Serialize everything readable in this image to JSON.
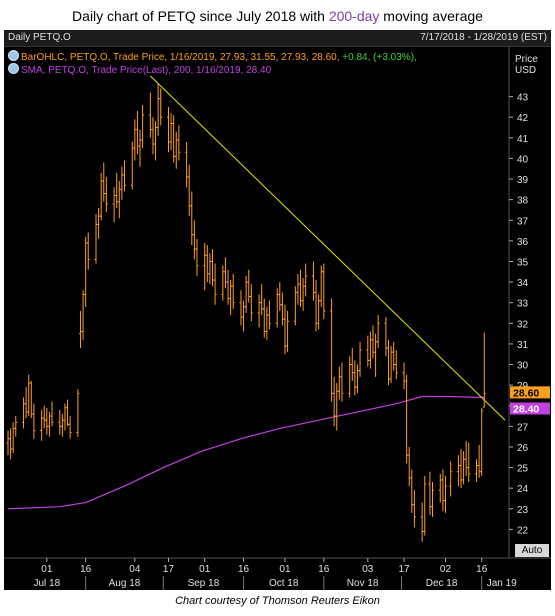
{
  "title": {
    "before": "Daily chart of PETQ since July 2018 with ",
    "accent": "200-day",
    "after": " moving average"
  },
  "header": {
    "left": "Daily PETQ.O",
    "right": "7/17/2018 - 1/28/2019 (EST)"
  },
  "legend": {
    "ohlc": {
      "text": "BarOHLC, PETQ.O, Trade Price,  1/16/2019, 27.93, 31.55, 27.93, 28.60,",
      "change": " +0.84, (+3.03%),"
    },
    "sma": {
      "text": "SMA, PETQ.O, Trade Price(Last),  200,  1/16/2019, 28.40"
    }
  },
  "axis": {
    "currency_line1": "Price",
    "currency_line2": "USD",
    "auto_label": "Auto"
  },
  "credit": "Chart courtesy of Thomson Reuters Eikon",
  "colors": {
    "bars": "#ff9f1c",
    "sma": "#c040e0",
    "trendline": "#e6e600",
    "last_price_bg": "#ff9f1c",
    "sma_price_bg": "#c040e0"
  },
  "chart_data": {
    "type": "line",
    "subtype": "ohlc-bars",
    "ylim": [
      21,
      44
    ],
    "y_ticks": [
      22,
      23,
      24,
      25,
      26,
      27,
      28,
      29,
      30,
      31,
      32,
      33,
      34,
      35,
      36,
      37,
      38,
      39,
      40,
      41,
      42,
      43
    ],
    "x_day_ticks": [
      {
        "label": "01",
        "day": 15
      },
      {
        "label": "16",
        "day": 30
      },
      {
        "label": "04",
        "day": 49
      },
      {
        "label": "17",
        "day": 62
      },
      {
        "label": "01",
        "day": 76
      },
      {
        "label": "16",
        "day": 91
      },
      {
        "label": "01",
        "day": 107
      },
      {
        "label": "16",
        "day": 122
      },
      {
        "label": "03",
        "day": 139
      },
      {
        "label": "17",
        "day": 153
      },
      {
        "label": "02",
        "day": 169
      },
      {
        "label": "16",
        "day": 183
      }
    ],
    "x_month_labels": [
      {
        "label": "Jul 18",
        "day": 0
      },
      {
        "label": "Aug 18",
        "day": 30
      },
      {
        "label": "Sep 18",
        "day": 60
      },
      {
        "label": "Oct 18",
        "day": 91
      },
      {
        "label": "Nov 18",
        "day": 122
      },
      {
        "label": "Dec 18",
        "day": 152
      },
      {
        "label": "Jan 19",
        "day": 183
      }
    ],
    "x_range_days": [
      0,
      192
    ],
    "ohlc": [
      {
        "day": 0,
        "o": 26.2,
        "h": 26.8,
        "l": 25.6,
        "c": 26.4
      },
      {
        "day": 1,
        "o": 26.4,
        "h": 26.9,
        "l": 25.4,
        "c": 25.9
      },
      {
        "day": 2,
        "o": 25.9,
        "h": 27.2,
        "l": 25.7,
        "c": 26.9
      },
      {
        "day": 3,
        "o": 26.9,
        "h": 27.5,
        "l": 26.5,
        "c": 27.2
      },
      {
        "day": 6,
        "o": 27.2,
        "h": 28.4,
        "l": 26.9,
        "c": 28.1
      },
      {
        "day": 7,
        "o": 28.1,
        "h": 28.9,
        "l": 27.4,
        "c": 27.7
      },
      {
        "day": 8,
        "o": 27.7,
        "h": 29.5,
        "l": 27.5,
        "c": 29.1
      },
      {
        "day": 9,
        "o": 29.1,
        "h": 29.2,
        "l": 27.4,
        "c": 27.6
      },
      {
        "day": 10,
        "o": 27.6,
        "h": 28.1,
        "l": 26.4,
        "c": 26.8
      },
      {
        "day": 13,
        "o": 26.8,
        "h": 27.8,
        "l": 26.3,
        "c": 27.4
      },
      {
        "day": 14,
        "o": 27.4,
        "h": 28.0,
        "l": 26.9,
        "c": 27.3
      },
      {
        "day": 15,
        "o": 27.3,
        "h": 27.9,
        "l": 26.6,
        "c": 27.0
      },
      {
        "day": 16,
        "o": 27.0,
        "h": 27.7,
        "l": 26.5,
        "c": 27.5
      },
      {
        "day": 17,
        "o": 27.5,
        "h": 28.2,
        "l": 27.0,
        "c": 27.2
      },
      {
        "day": 20,
        "o": 27.2,
        "h": 27.8,
        "l": 26.6,
        "c": 27.0
      },
      {
        "day": 21,
        "o": 27.0,
        "h": 27.6,
        "l": 26.5,
        "c": 27.3
      },
      {
        "day": 22,
        "o": 27.3,
        "h": 28.1,
        "l": 26.8,
        "c": 27.9
      },
      {
        "day": 23,
        "o": 27.9,
        "h": 28.3,
        "l": 27.0,
        "c": 27.1
      },
      {
        "day": 24,
        "o": 27.1,
        "h": 27.5,
        "l": 26.4,
        "c": 26.7
      },
      {
        "day": 27,
        "o": 26.7,
        "h": 28.8,
        "l": 26.5,
        "c": 28.6
      },
      {
        "day": 28,
        "o": 31.5,
        "h": 32.6,
        "l": 30.8,
        "c": 31.6
      },
      {
        "day": 29,
        "o": 31.6,
        "h": 33.6,
        "l": 31.2,
        "c": 33.4
      },
      {
        "day": 30,
        "o": 33.4,
        "h": 36.2,
        "l": 32.8,
        "c": 35.9
      },
      {
        "day": 31,
        "o": 35.9,
        "h": 36.4,
        "l": 34.6,
        "c": 35.1
      },
      {
        "day": 34,
        "o": 35.1,
        "h": 37.3,
        "l": 34.9,
        "c": 36.8
      },
      {
        "day": 35,
        "o": 36.8,
        "h": 37.6,
        "l": 36.1,
        "c": 37.2
      },
      {
        "day": 36,
        "o": 37.2,
        "h": 39.3,
        "l": 37.0,
        "c": 38.9
      },
      {
        "day": 37,
        "o": 38.9,
        "h": 39.8,
        "l": 37.9,
        "c": 38.3
      },
      {
        "day": 38,
        "o": 38.3,
        "h": 39.1,
        "l": 37.4,
        "c": 37.8
      },
      {
        "day": 41,
        "o": 37.8,
        "h": 38.6,
        "l": 36.9,
        "c": 38.2
      },
      {
        "day": 42,
        "o": 38.2,
        "h": 39.3,
        "l": 37.6,
        "c": 37.9
      },
      {
        "day": 43,
        "o": 37.9,
        "h": 38.9,
        "l": 37.1,
        "c": 38.5
      },
      {
        "day": 44,
        "o": 38.5,
        "h": 39.6,
        "l": 38.0,
        "c": 39.2
      },
      {
        "day": 45,
        "o": 39.2,
        "h": 39.9,
        "l": 38.4,
        "c": 38.7
      },
      {
        "day": 48,
        "o": 38.7,
        "h": 40.8,
        "l": 38.5,
        "c": 40.5
      },
      {
        "day": 49,
        "o": 40.5,
        "h": 41.9,
        "l": 39.9,
        "c": 41.4
      },
      {
        "day": 50,
        "o": 41.4,
        "h": 42.3,
        "l": 40.2,
        "c": 40.6
      },
      {
        "day": 51,
        "o": 40.6,
        "h": 41.4,
        "l": 39.6,
        "c": 40.9
      },
      {
        "day": 52,
        "o": 40.9,
        "h": 42.6,
        "l": 40.5,
        "c": 42.1
      },
      {
        "day": 55,
        "o": 42.1,
        "h": 43.2,
        "l": 41.0,
        "c": 41.4
      },
      {
        "day": 56,
        "o": 41.4,
        "h": 42.0,
        "l": 40.2,
        "c": 40.7
      },
      {
        "day": 57,
        "o": 40.7,
        "h": 41.8,
        "l": 39.9,
        "c": 41.5
      },
      {
        "day": 58,
        "o": 41.5,
        "h": 43.6,
        "l": 41.1,
        "c": 42.9
      },
      {
        "day": 59,
        "o": 42.9,
        "h": 43.4,
        "l": 41.6,
        "c": 42.0
      },
      {
        "day": 62,
        "o": 42.0,
        "h": 42.5,
        "l": 40.3,
        "c": 40.8
      },
      {
        "day": 63,
        "o": 40.8,
        "h": 42.2,
        "l": 40.4,
        "c": 41.7
      },
      {
        "day": 64,
        "o": 41.7,
        "h": 42.1,
        "l": 39.8,
        "c": 40.1
      },
      {
        "day": 65,
        "o": 40.1,
        "h": 41.3,
        "l": 39.5,
        "c": 40.9
      },
      {
        "day": 66,
        "o": 40.9,
        "h": 41.6,
        "l": 39.9,
        "c": 40.3
      },
      {
        "day": 69,
        "o": 40.3,
        "h": 40.8,
        "l": 38.6,
        "c": 39.1
      },
      {
        "day": 70,
        "o": 39.1,
        "h": 39.7,
        "l": 37.2,
        "c": 37.7
      },
      {
        "day": 71,
        "o": 37.7,
        "h": 38.4,
        "l": 35.8,
        "c": 36.3
      },
      {
        "day": 72,
        "o": 36.3,
        "h": 37.0,
        "l": 35.1,
        "c": 35.6
      },
      {
        "day": 73,
        "o": 35.6,
        "h": 36.1,
        "l": 34.3,
        "c": 34.8
      },
      {
        "day": 76,
        "o": 34.8,
        "h": 35.9,
        "l": 33.6,
        "c": 35.3
      },
      {
        "day": 77,
        "o": 35.3,
        "h": 35.8,
        "l": 34.0,
        "c": 34.4
      },
      {
        "day": 78,
        "o": 34.4,
        "h": 35.4,
        "l": 33.9,
        "c": 35.0
      },
      {
        "day": 79,
        "o": 35.0,
        "h": 35.6,
        "l": 33.8,
        "c": 34.1
      },
      {
        "day": 80,
        "o": 34.1,
        "h": 34.9,
        "l": 32.9,
        "c": 33.4
      },
      {
        "day": 83,
        "o": 33.4,
        "h": 34.8,
        "l": 33.1,
        "c": 34.5
      },
      {
        "day": 84,
        "o": 34.5,
        "h": 35.2,
        "l": 33.7,
        "c": 34.0
      },
      {
        "day": 85,
        "o": 34.0,
        "h": 34.6,
        "l": 32.9,
        "c": 33.2
      },
      {
        "day": 86,
        "o": 33.2,
        "h": 34.1,
        "l": 32.4,
        "c": 33.8
      },
      {
        "day": 87,
        "o": 33.8,
        "h": 34.4,
        "l": 32.7,
        "c": 33.0
      },
      {
        "day": 90,
        "o": 33.0,
        "h": 33.6,
        "l": 31.9,
        "c": 32.3
      },
      {
        "day": 91,
        "o": 32.3,
        "h": 33.1,
        "l": 31.6,
        "c": 32.8
      },
      {
        "day": 92,
        "o": 32.8,
        "h": 34.3,
        "l": 32.5,
        "c": 34.0
      },
      {
        "day": 93,
        "o": 34.0,
        "h": 34.6,
        "l": 33.0,
        "c": 33.3
      },
      {
        "day": 94,
        "o": 33.3,
        "h": 33.9,
        "l": 32.1,
        "c": 32.5
      },
      {
        "day": 97,
        "o": 32.5,
        "h": 33.4,
        "l": 31.8,
        "c": 33.0
      },
      {
        "day": 98,
        "o": 33.0,
        "h": 33.9,
        "l": 32.4,
        "c": 32.7
      },
      {
        "day": 99,
        "o": 32.7,
        "h": 33.2,
        "l": 31.3,
        "c": 31.6
      },
      {
        "day": 100,
        "o": 31.6,
        "h": 32.8,
        "l": 31.2,
        "c": 32.4
      },
      {
        "day": 101,
        "o": 32.4,
        "h": 33.1,
        "l": 31.7,
        "c": 32.0
      },
      {
        "day": 104,
        "o": 32.0,
        "h": 33.7,
        "l": 31.8,
        "c": 33.4
      },
      {
        "day": 105,
        "o": 33.4,
        "h": 34.0,
        "l": 32.6,
        "c": 32.9
      },
      {
        "day": 106,
        "o": 32.9,
        "h": 33.5,
        "l": 31.9,
        "c": 32.2
      },
      {
        "day": 107,
        "o": 32.2,
        "h": 32.9,
        "l": 30.5,
        "c": 30.9
      },
      {
        "day": 108,
        "o": 30.9,
        "h": 32.6,
        "l": 30.6,
        "c": 32.1
      },
      {
        "day": 111,
        "o": 32.1,
        "h": 33.8,
        "l": 31.9,
        "c": 33.5
      },
      {
        "day": 112,
        "o": 33.5,
        "h": 34.4,
        "l": 32.9,
        "c": 33.9
      },
      {
        "day": 113,
        "o": 33.9,
        "h": 34.6,
        "l": 32.8,
        "c": 33.1
      },
      {
        "day": 114,
        "o": 33.1,
        "h": 34.2,
        "l": 32.6,
        "c": 33.8
      },
      {
        "day": 115,
        "o": 33.8,
        "h": 34.9,
        "l": 33.3,
        "c": 34.3
      },
      {
        "day": 118,
        "o": 34.3,
        "h": 35.0,
        "l": 33.1,
        "c": 33.5
      },
      {
        "day": 119,
        "o": 33.5,
        "h": 34.1,
        "l": 31.6,
        "c": 32.0
      },
      {
        "day": 120,
        "o": 32.0,
        "h": 33.4,
        "l": 31.7,
        "c": 33.1
      },
      {
        "day": 121,
        "o": 33.1,
        "h": 34.8,
        "l": 32.8,
        "c": 34.5
      },
      {
        "day": 122,
        "o": 34.5,
        "h": 34.9,
        "l": 32.2,
        "c": 32.6
      },
      {
        "day": 125,
        "o": 32.6,
        "h": 33.2,
        "l": 28.2,
        "c": 28.6
      },
      {
        "day": 126,
        "o": 28.6,
        "h": 29.4,
        "l": 27.0,
        "c": 27.5
      },
      {
        "day": 127,
        "o": 27.5,
        "h": 29.1,
        "l": 26.8,
        "c": 28.7
      },
      {
        "day": 128,
        "o": 28.7,
        "h": 29.9,
        "l": 28.3,
        "c": 29.4
      },
      {
        "day": 129,
        "o": 29.4,
        "h": 30.1,
        "l": 28.2,
        "c": 28.6
      },
      {
        "day": 132,
        "o": 28.6,
        "h": 30.4,
        "l": 28.4,
        "c": 30.0
      },
      {
        "day": 133,
        "o": 30.0,
        "h": 30.8,
        "l": 29.2,
        "c": 29.6
      },
      {
        "day": 134,
        "o": 29.6,
        "h": 30.2,
        "l": 28.5,
        "c": 28.9
      },
      {
        "day": 135,
        "o": 28.9,
        "h": 30.0,
        "l": 28.6,
        "c": 29.7
      },
      {
        "day": 136,
        "o": 29.7,
        "h": 31.1,
        "l": 29.4,
        "c": 30.7
      },
      {
        "day": 139,
        "o": 30.7,
        "h": 31.4,
        "l": 29.9,
        "c": 30.2
      },
      {
        "day": 140,
        "o": 30.2,
        "h": 31.6,
        "l": 29.8,
        "c": 31.2
      },
      {
        "day": 141,
        "o": 31.2,
        "h": 31.9,
        "l": 30.3,
        "c": 30.6
      },
      {
        "day": 142,
        "o": 30.6,
        "h": 31.5,
        "l": 29.4,
        "c": 31.1
      },
      {
        "day": 143,
        "o": 31.1,
        "h": 32.4,
        "l": 30.8,
        "c": 32.0
      },
      {
        "day": 146,
        "o": 32.0,
        "h": 32.3,
        "l": 30.4,
        "c": 30.8
      },
      {
        "day": 147,
        "o": 30.8,
        "h": 31.2,
        "l": 29.0,
        "c": 29.3
      },
      {
        "day": 148,
        "o": 29.3,
        "h": 30.9,
        "l": 29.1,
        "c": 30.6
      },
      {
        "day": 149,
        "o": 30.6,
        "h": 31.1,
        "l": 29.7,
        "c": 30.0
      },
      {
        "day": 150,
        "o": 30.0,
        "h": 30.7,
        "l": 29.3,
        "c": 29.6
      },
      {
        "day": 153,
        "o": 29.6,
        "h": 30.1,
        "l": 28.8,
        "c": 29.2
      },
      {
        "day": 154,
        "o": 29.2,
        "h": 29.5,
        "l": 25.2,
        "c": 25.6
      },
      {
        "day": 155,
        "o": 25.6,
        "h": 26.0,
        "l": 24.1,
        "c": 24.5
      },
      {
        "day": 156,
        "o": 24.5,
        "h": 24.9,
        "l": 22.8,
        "c": 23.2
      },
      {
        "day": 157,
        "o": 23.2,
        "h": 23.9,
        "l": 22.1,
        "c": 22.6
      },
      {
        "day": 160,
        "o": 22.6,
        "h": 23.3,
        "l": 21.4,
        "c": 21.9
      },
      {
        "day": 161,
        "o": 21.9,
        "h": 24.6,
        "l": 21.7,
        "c": 24.2
      },
      {
        "day": 163,
        "o": 24.2,
        "h": 24.8,
        "l": 22.7,
        "c": 23.1
      },
      {
        "day": 164,
        "o": 23.1,
        "h": 24.3,
        "l": 22.6,
        "c": 23.9
      },
      {
        "day": 167,
        "o": 23.9,
        "h": 24.7,
        "l": 23.3,
        "c": 24.4
      },
      {
        "day": 168,
        "o": 24.4,
        "h": 24.9,
        "l": 22.9,
        "c": 23.4
      },
      {
        "day": 169,
        "o": 23.4,
        "h": 24.6,
        "l": 22.8,
        "c": 24.1
      },
      {
        "day": 171,
        "o": 24.1,
        "h": 25.3,
        "l": 23.6,
        "c": 24.8
      },
      {
        "day": 174,
        "o": 24.8,
        "h": 25.6,
        "l": 24.1,
        "c": 25.1
      },
      {
        "day": 175,
        "o": 25.1,
        "h": 25.9,
        "l": 24.0,
        "c": 24.4
      },
      {
        "day": 176,
        "o": 24.4,
        "h": 25.8,
        "l": 24.2,
        "c": 25.4
      },
      {
        "day": 177,
        "o": 25.4,
        "h": 26.3,
        "l": 24.6,
        "c": 25.0
      },
      {
        "day": 178,
        "o": 25.0,
        "h": 26.2,
        "l": 24.3,
        "c": 24.7
      },
      {
        "day": 181,
        "o": 24.7,
        "h": 25.4,
        "l": 24.3,
        "c": 25.1
      },
      {
        "day": 182,
        "o": 25.1,
        "h": 26.1,
        "l": 24.5,
        "c": 24.8
      },
      {
        "day": 183,
        "o": 24.8,
        "h": 27.9,
        "l": 24.6,
        "c": 27.76
      },
      {
        "day": 184,
        "o": 27.93,
        "h": 31.55,
        "l": 27.93,
        "c": 28.6
      }
    ],
    "sma_200": [
      {
        "day": 0,
        "v": 23.0
      },
      {
        "day": 20,
        "v": 23.1
      },
      {
        "day": 30,
        "v": 23.3
      },
      {
        "day": 45,
        "v": 24.1
      },
      {
        "day": 60,
        "v": 25.0
      },
      {
        "day": 75,
        "v": 25.8
      },
      {
        "day": 90,
        "v": 26.4
      },
      {
        "day": 105,
        "v": 26.9
      },
      {
        "day": 120,
        "v": 27.3
      },
      {
        "day": 135,
        "v": 27.7
      },
      {
        "day": 150,
        "v": 28.1
      },
      {
        "day": 160,
        "v": 28.45
      },
      {
        "day": 170,
        "v": 28.45
      },
      {
        "day": 184,
        "v": 28.4
      }
    ],
    "trendline": [
      {
        "day": 55,
        "v": 44.0
      },
      {
        "day": 192,
        "v": 27.3
      }
    ],
    "last_price": 28.6,
    "last_sma": 28.4
  }
}
